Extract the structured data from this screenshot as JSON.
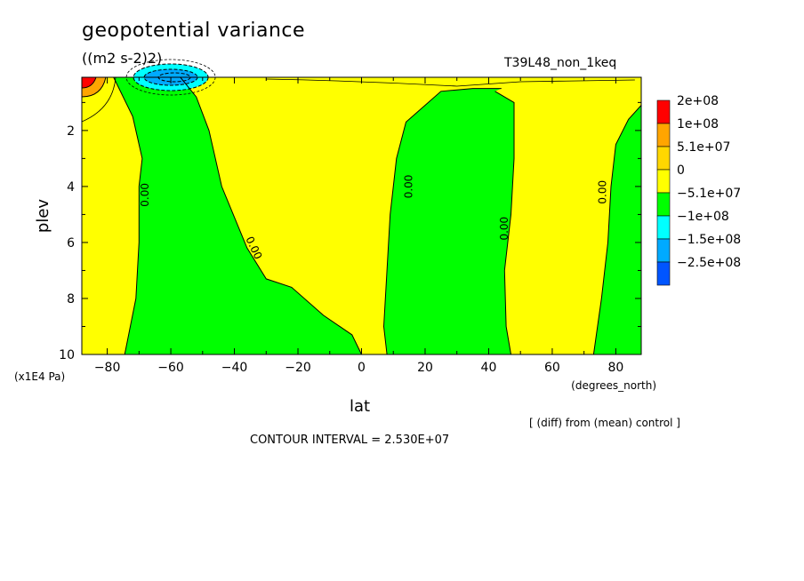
{
  "header": {
    "title": "geopotential variance",
    "units": "((m2 s-2)2)",
    "run_label": "T39L48_non_1keq"
  },
  "footer": {
    "comparison_note": "[ (diff) from (mean) control ]",
    "contour_interval": "CONTOUR INTERVAL = 2.530E+07"
  },
  "chart_data": {
    "type": "contour",
    "title": "geopotential variance",
    "units": "((m2 s-2)2)",
    "xlabel": "lat",
    "xunits": "(degrees_north)",
    "ylabel": "plev",
    "yunits": "(x1E4 Pa)",
    "xlim": [
      -88,
      88
    ],
    "ylim": [
      0.1,
      10
    ],
    "y_reversed": true,
    "xticks": [
      -80,
      -60,
      -40,
      -20,
      0,
      20,
      40,
      60,
      80
    ],
    "xtick_labels": [
      "−80",
      "−60",
      "−40",
      "−20",
      "0",
      "20",
      "40",
      "60",
      "80"
    ],
    "yticks": [
      2,
      4,
      6,
      8,
      10
    ],
    "ytick_labels": [
      "2",
      "4",
      "6",
      "8",
      "10"
    ],
    "contour_interval": 25300000,
    "contour_line_labels": [
      "0.00",
      "0.00",
      "0.00",
      "0.00",
      "0.00"
    ],
    "legend": [
      {
        "label": "2e+08",
        "color": "#ff0000"
      },
      {
        "label": "1e+08",
        "color": "#ffa500"
      },
      {
        "label": "5.1e+07",
        "color": "#ffd700"
      },
      {
        "label": "0",
        "color": "#ffff00"
      },
      {
        "label": "−5.1e+07",
        "color": "#00ff00"
      },
      {
        "label": "−1e+08",
        "color": "#00ffff"
      },
      {
        "label": "−1.5e+08",
        "color": "#00aaff"
      },
      {
        "label": "−2.5e+08",
        "color": "#0055ff"
      }
    ],
    "fill_colors": {
      "positive_weak": "#ffff00",
      "negative_weak": "#00ff00",
      "positive_strong": "#ffa500",
      "positive_max": "#ff0000",
      "negative_mid": "#00ffff",
      "negative_strong": "#00aaff"
    },
    "regions": [
      {
        "sign": "negative",
        "name": "southern-mid-latitude-band",
        "boundary_west": [
          [
            -74.5,
            10
          ],
          [
            -71,
            8
          ],
          [
            -70,
            6
          ],
          [
            -70,
            4
          ],
          [
            -69,
            3
          ],
          [
            -72,
            1.5
          ],
          [
            -78,
            0.1
          ]
        ],
        "boundary_east": [
          [
            -57,
            0.1
          ],
          [
            -52,
            0.8
          ],
          [
            -48,
            2
          ],
          [
            -44,
            4
          ],
          [
            -36,
            6.2
          ],
          [
            -30,
            7.3
          ],
          [
            -22,
            7.6
          ],
          [
            -12,
            8.6
          ],
          [
            -3,
            9.3
          ],
          [
            0,
            10
          ]
        ]
      },
      {
        "sign": "negative",
        "name": "northern-subtropical-band",
        "boundary_west": [
          [
            8,
            10
          ],
          [
            7,
            9
          ],
          [
            8,
            7
          ],
          [
            9,
            5
          ],
          [
            11,
            3
          ],
          [
            14,
            1.7
          ],
          [
            25,
            0.6
          ],
          [
            35,
            0.5
          ],
          [
            44,
            0.5
          ]
        ],
        "boundary_east": [
          [
            42,
            0.6
          ],
          [
            48,
            1
          ],
          [
            48,
            3
          ],
          [
            47,
            5
          ],
          [
            45,
            7
          ],
          [
            45.5,
            9
          ],
          [
            47,
            10
          ]
        ]
      },
      {
        "sign": "negative",
        "name": "northern-high-latitude-band",
        "boundary_west": [
          [
            73,
            10
          ],
          [
            75.5,
            8
          ],
          [
            77.5,
            6
          ],
          [
            78.5,
            4
          ],
          [
            80,
            2.5
          ],
          [
            84,
            1.6
          ],
          [
            88,
            1.1
          ]
        ]
      }
    ],
    "features": [
      {
        "sign": "negative",
        "lat": -60,
        "plev": 0.2,
        "note": "upper-level minimum"
      },
      {
        "sign": "positive",
        "lat": -88,
        "plev": 0.1,
        "note": "polar maximum"
      }
    ]
  }
}
